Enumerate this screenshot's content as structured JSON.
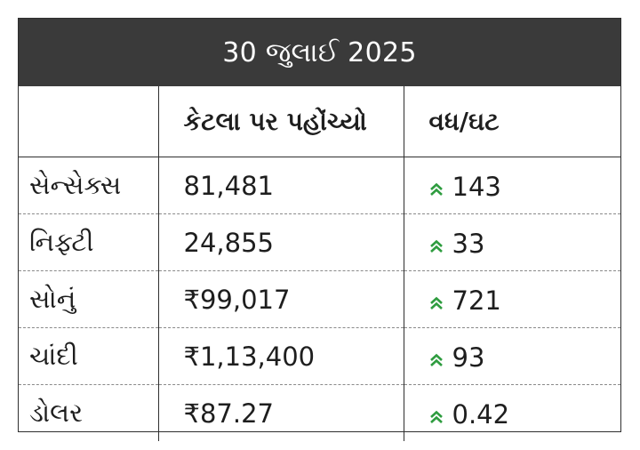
{
  "title": "30 જુલાઈ 2025",
  "headers": {
    "name": "",
    "level": "કેટલા પર પહોંચ્યો",
    "change": "વધ/ઘટ"
  },
  "rows": [
    {
      "name": "સેન્સેક્સ",
      "level": "81,481",
      "change": "143",
      "direction": "up"
    },
    {
      "name": "નિફ્ટી",
      "level": "24,855",
      "change": "33",
      "direction": "up"
    },
    {
      "name": "સોનું",
      "level": "₹99,017",
      "change": "721",
      "direction": "up"
    },
    {
      "name": "ચાંદી",
      "level": "₹1,13,400",
      "change": "93",
      "direction": "up"
    },
    {
      "name": "ડોલર",
      "level": "₹87.27",
      "change": "0.42",
      "direction": "up"
    }
  ],
  "colors": {
    "header_bg": "#3a3a3a",
    "up_arrow": "#2e9c3f",
    "border": "#2f2f2f"
  },
  "icons": {
    "up": "double-chevron-up-icon"
  }
}
